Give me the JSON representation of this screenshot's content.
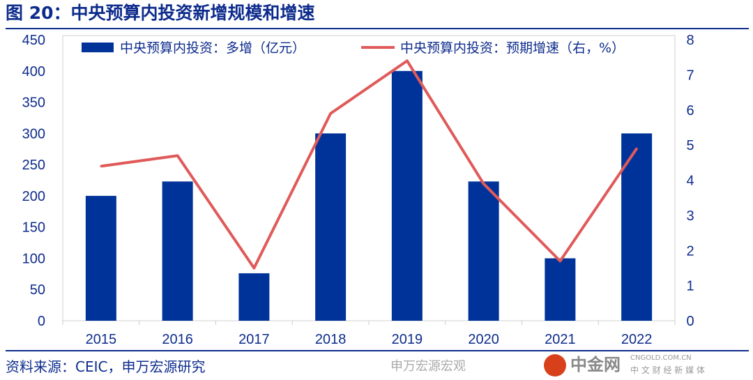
{
  "title": "图 20：中央预算内投资新增规模和增速",
  "source": "资料来源：CEIC，申万宏源研究",
  "watermark": {
    "brand": "中金网",
    "domain": "CNGOLD.COM.CN",
    "tagline": "中 文 财 经 新 媒 体",
    "wechat": "申万宏源宏观"
  },
  "colors": {
    "bar": "#003399",
    "line": "#e05a5a",
    "text": "#0d2b8c"
  },
  "chart_data": {
    "type": "bar+line",
    "categories": [
      "2015",
      "2016",
      "2017",
      "2018",
      "2019",
      "2020",
      "2021",
      "2022"
    ],
    "series": [
      {
        "name": "中央预算内投资：多增（亿元）",
        "type": "bar",
        "axis": "left",
        "values": [
          200,
          223,
          76,
          300,
          400,
          223,
          100,
          300
        ]
      },
      {
        "name": "中央预算内投资：预期增速（右，%）",
        "type": "line",
        "axis": "right",
        "values": [
          4.4,
          4.7,
          1.5,
          5.9,
          7.4,
          3.9,
          1.7,
          4.9
        ]
      }
    ],
    "ylim_left": [
      0,
      450
    ],
    "yticks_left": [
      0,
      50,
      100,
      150,
      200,
      250,
      300,
      350,
      400,
      450
    ],
    "ylim_right": [
      0,
      8
    ],
    "yticks_right": [
      0,
      1,
      2,
      3,
      4,
      5,
      6,
      7,
      8
    ],
    "legend": "top"
  }
}
